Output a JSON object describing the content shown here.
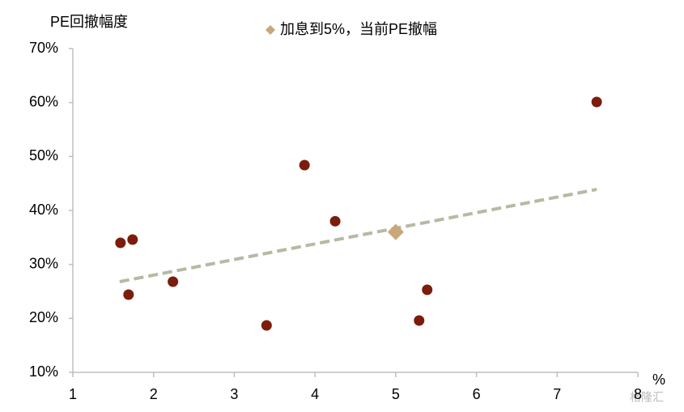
{
  "chart_data": {
    "type": "scatter",
    "y_label": "PE回撤幅度",
    "x_label": "%",
    "xlim": [
      1,
      8
    ],
    "xticks": [
      1,
      2,
      3,
      4,
      5,
      6,
      7,
      8
    ],
    "ylim": [
      10,
      70
    ],
    "yticks": [
      {
        "value": 10,
        "label": "10%"
      },
      {
        "value": 20,
        "label": "20%"
      },
      {
        "value": 30,
        "label": "30%"
      },
      {
        "value": 40,
        "label": "40%"
      },
      {
        "value": 50,
        "label": "50%"
      },
      {
        "value": 60,
        "label": "60%"
      },
      {
        "value": 70,
        "label": "70%"
      }
    ],
    "series": [
      {
        "color": "#7b1c0c",
        "marker": "circle",
        "x": [
          1.59,
          1.74,
          1.69,
          2.24,
          3.4,
          3.87,
          4.25,
          5.39,
          5.29,
          7.49
        ],
        "values": [
          34.0,
          34.6,
          24.4,
          26.8,
          18.7,
          48.4,
          38.0,
          25.3,
          19.6,
          60.1
        ]
      },
      {
        "name": "加息到5%，当前PE撤幅",
        "color": "#c9a77a",
        "marker": "diamond",
        "x": [
          5
        ],
        "values": [
          36
        ]
      }
    ],
    "trendline": {
      "color": "#b8b8a4",
      "x": [
        1.58,
        7.49
      ],
      "values": [
        26.8,
        43.9
      ]
    },
    "watermark": "格隆汇"
  }
}
